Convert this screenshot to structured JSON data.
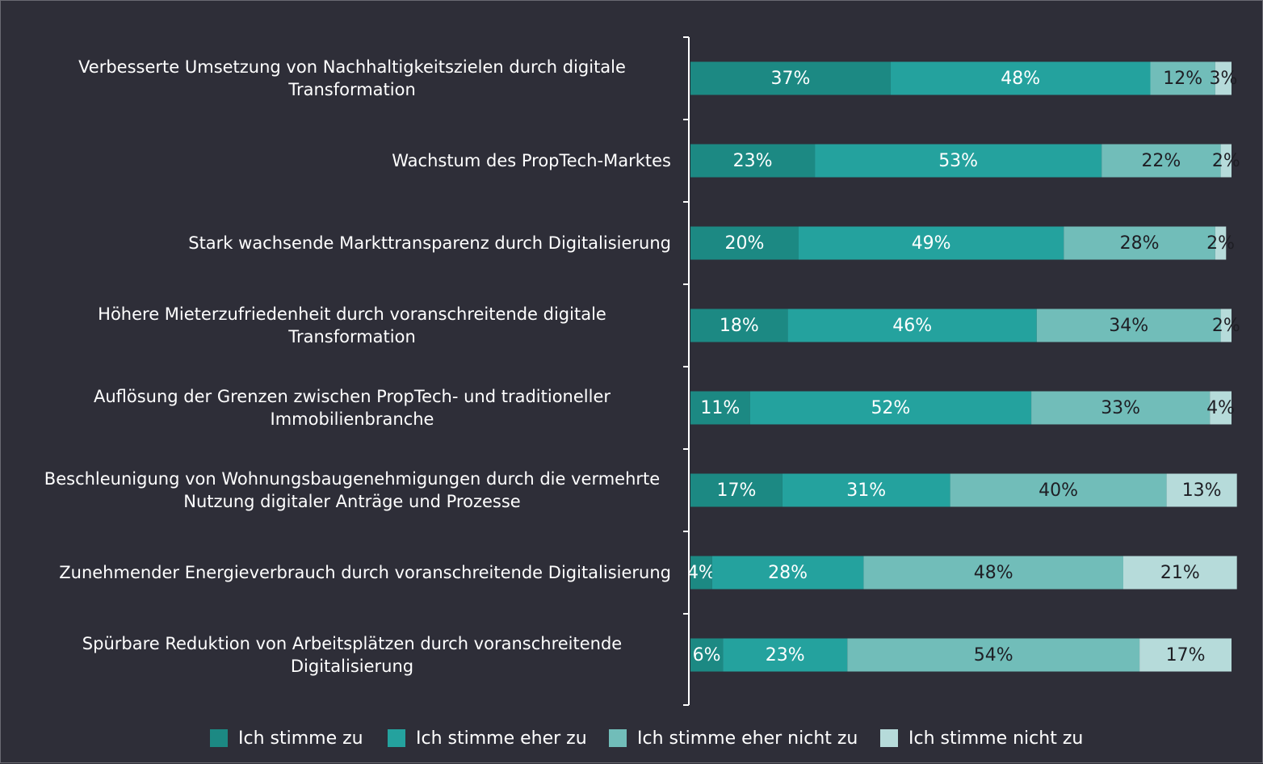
{
  "chart_data": {
    "type": "stacked-bar-horizontal",
    "categories": [
      "Verbesserte Umsetzung von Nachhaltigkeitszielen durch digitale Transformation",
      "Wachstum des PropTech-Marktes",
      "Stark wachsende Markttransparenz durch Digitalisierung",
      "Höhere Mieterzufriedenheit durch voranschreitende digitale Transformation",
      "Auflösung der Grenzen zwischen PropTech- und traditioneller Immobilienbranche",
      "Beschleunigung von Wohnungsbaugenehmigungen durch die vermehrte Nutzung digitaler Anträge und Prozesse",
      "Zunehmender Energieverbrauch durch voranschreitende Digitalisierung",
      "Spürbare Reduktion von Arbeitsplätzen durch voranschreitende Digitalisierung"
    ],
    "series": [
      {
        "name": "Ich stimme zu",
        "color": "#1c8983",
        "label_color": "#ffffff",
        "values": [
          37,
          23,
          20,
          18,
          11,
          17,
          4,
          6
        ],
        "value_labels": [
          "37%",
          "23%",
          "20%",
          "18%",
          "11%",
          "17%",
          "4%",
          "6%"
        ]
      },
      {
        "name": "Ich stimme eher zu",
        "color": "#24a29e",
        "label_color": "#ffffff",
        "values": [
          48,
          53,
          49,
          46,
          52,
          31,
          28,
          23
        ],
        "value_labels": [
          "48%",
          "53%",
          "49%",
          "46%",
          "52%",
          "31%",
          "28%",
          "23%"
        ]
      },
      {
        "name": "Ich stimme eher nicht zu",
        "color": "#71bdb9",
        "label_color": "#1e1e24",
        "values": [
          12,
          22,
          28,
          34,
          33,
          40,
          48,
          54
        ],
        "value_labels": [
          "12%",
          "22%",
          "28%",
          "34%",
          "33%",
          "40%",
          "48%",
          "54%"
        ]
      },
      {
        "name": "Ich stimme nicht zu",
        "color": "#b6dbda",
        "label_color": "#1e1e24",
        "values": [
          3,
          2,
          2,
          2,
          4,
          13,
          21,
          17
        ],
        "value_labels": [
          "3%",
          "2%",
          "2%",
          "2%",
          "4%",
          "13%",
          "21%",
          "17%"
        ]
      }
    ],
    "xlim": [
      0,
      100
    ],
    "legend": "bottom"
  }
}
